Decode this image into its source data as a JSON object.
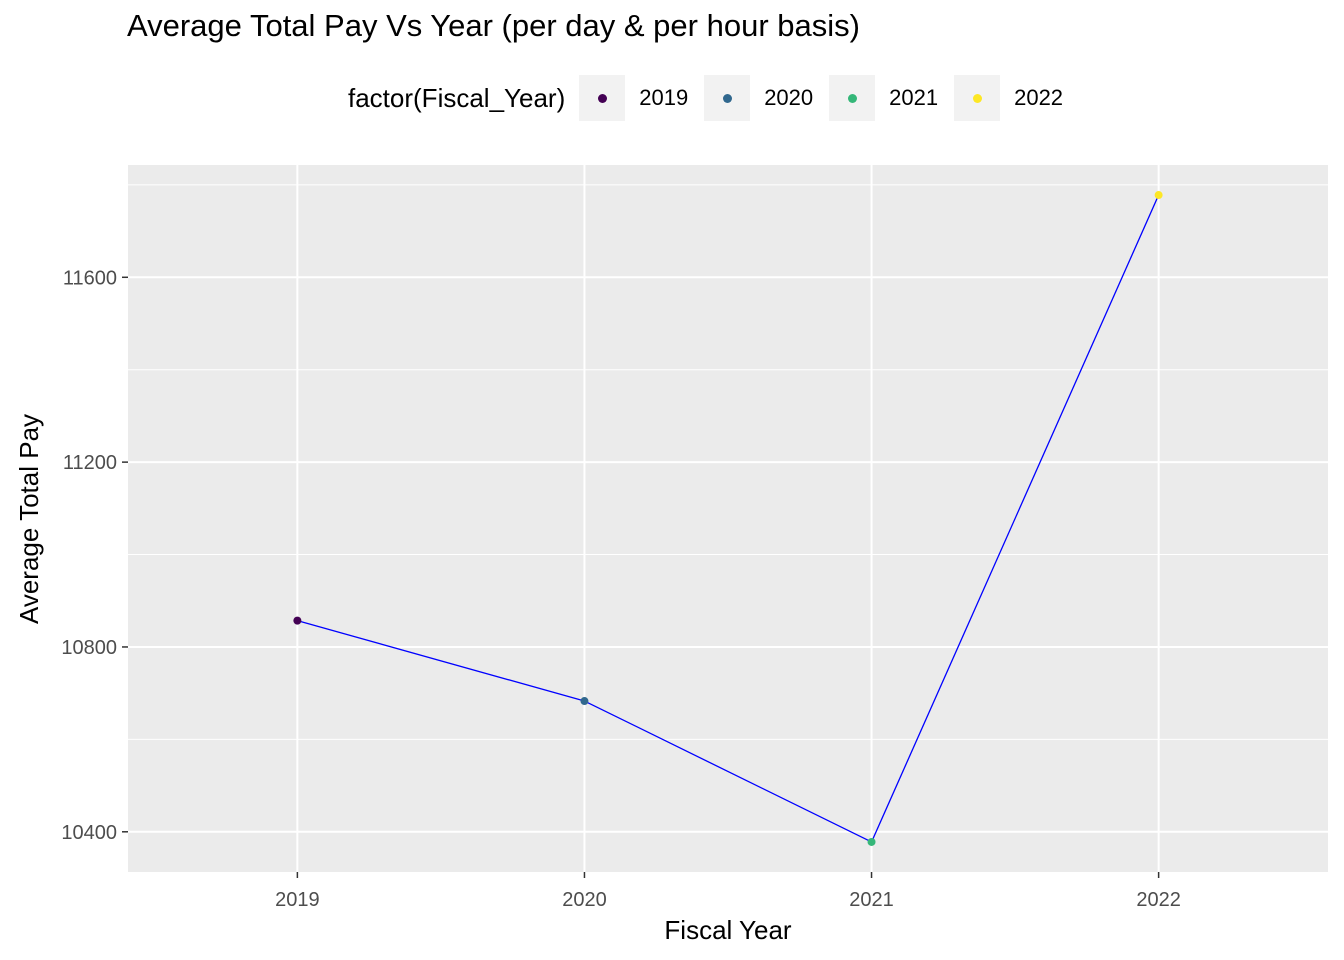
{
  "chart_data": {
    "type": "line",
    "title": "Average Total Pay Vs Year (per day & per hour basis)",
    "xlabel": "Fiscal Year",
    "ylabel": "Average Total Pay",
    "x": [
      2019,
      2020,
      2021,
      2022
    ],
    "y": [
      10857,
      10683,
      10378,
      11778
    ],
    "xlim": [
      2018.41,
      2022.59
    ],
    "ylim": [
      10313,
      11843
    ],
    "x_ticks": [
      2019,
      2020,
      2021,
      2022
    ],
    "y_ticks": [
      10400,
      10800,
      11200,
      11600
    ],
    "y_minor_ticks": [
      10600,
      11000,
      11400,
      11800
    ],
    "line_color": "#0000ff",
    "legend": {
      "title": "factor(Fiscal_Year)",
      "position": "top",
      "entries": [
        {
          "label": "2019",
          "color": "#440154"
        },
        {
          "label": "2020",
          "color": "#31688e"
        },
        {
          "label": "2021",
          "color": "#35b779"
        },
        {
          "label": "2022",
          "color": "#fde725"
        }
      ]
    },
    "panel_background": "#ebebeb",
    "grid": true
  }
}
